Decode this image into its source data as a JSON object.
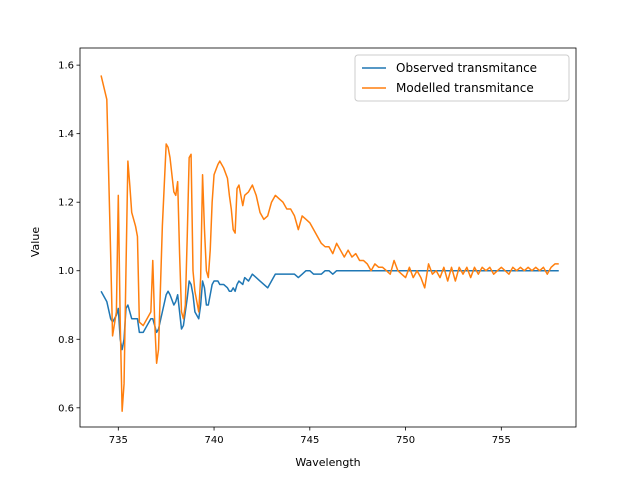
{
  "chart_data": {
    "type": "line",
    "x_label": "Wavelength",
    "y_label": "Value",
    "x": [
      734.1,
      734.4,
      734.6,
      734.7,
      734.9,
      735.0,
      735.1,
      735.2,
      735.3,
      735.4,
      735.5,
      735.6,
      735.7,
      735.9,
      736.0,
      736.1,
      736.3,
      736.5,
      736.7,
      736.8,
      736.9,
      737.0,
      737.1,
      737.3,
      737.5,
      737.6,
      737.7,
      737.9,
      738.0,
      738.1,
      738.2,
      738.3,
      738.4,
      738.5,
      738.6,
      738.7,
      738.8,
      738.9,
      739.0,
      739.2,
      739.3,
      739.4,
      739.5,
      739.6,
      739.7,
      739.8,
      739.9,
      740.0,
      740.2,
      740.3,
      740.5,
      740.7,
      740.8,
      740.9,
      741.0,
      741.1,
      741.2,
      741.3,
      741.5,
      741.6,
      741.8,
      742.0,
      742.2,
      742.4,
      742.6,
      742.8,
      743.0,
      743.2,
      743.4,
      743.6,
      743.8,
      744.0,
      744.2,
      744.4,
      744.6,
      744.8,
      745.0,
      745.2,
      745.4,
      745.6,
      745.8,
      746.0,
      746.2,
      746.4,
      746.6,
      746.8,
      747.0,
      747.2,
      747.4,
      747.6,
      747.8,
      748.0,
      748.2,
      748.4,
      748.6,
      748.8,
      749.0,
      749.2,
      749.4,
      749.6,
      749.8,
      750.0,
      750.2,
      750.4,
      750.6,
      750.8,
      751.0,
      751.2,
      751.4,
      751.6,
      751.8,
      752.0,
      752.2,
      752.4,
      752.6,
      752.8,
      753.0,
      753.2,
      753.4,
      753.6,
      753.8,
      754.0,
      754.2,
      754.4,
      754.6,
      754.8,
      755.0,
      755.2,
      755.4,
      755.6,
      755.8,
      756.0,
      756.2,
      756.4,
      756.6,
      756.8,
      757.0,
      757.2,
      757.4,
      757.6,
      757.8,
      758.0
    ],
    "series": [
      {
        "name": "Observed transmitance",
        "color": "#1f77b4",
        "values": [
          0.94,
          0.91,
          0.86,
          0.85,
          0.87,
          0.89,
          0.8,
          0.77,
          0.8,
          0.89,
          0.9,
          0.88,
          0.86,
          0.86,
          0.86,
          0.82,
          0.82,
          0.84,
          0.86,
          0.86,
          0.84,
          0.82,
          0.83,
          0.88,
          0.93,
          0.94,
          0.93,
          0.9,
          0.91,
          0.93,
          0.88,
          0.83,
          0.84,
          0.88,
          0.92,
          0.97,
          0.96,
          0.93,
          0.88,
          0.86,
          0.9,
          0.97,
          0.95,
          0.9,
          0.9,
          0.93,
          0.96,
          0.97,
          0.97,
          0.96,
          0.96,
          0.95,
          0.94,
          0.94,
          0.95,
          0.94,
          0.96,
          0.97,
          0.96,
          0.98,
          0.97,
          0.99,
          0.98,
          0.97,
          0.96,
          0.95,
          0.97,
          0.99,
          0.99,
          0.99,
          0.99,
          0.99,
          0.99,
          0.98,
          0.99,
          1.0,
          1.0,
          0.99,
          0.99,
          0.99,
          1.0,
          1.0,
          0.99,
          1.0,
          1.0,
          1.0,
          1.0,
          1.0,
          1.0,
          1.0,
          1.0,
          1.0,
          1.0,
          1.0,
          1.0,
          1.0,
          1.0,
          1.0,
          1.0,
          1.0,
          1.0,
          1.0,
          1.0,
          1.0,
          1.0,
          1.0,
          1.0,
          1.0,
          1.0,
          1.0,
          1.0,
          1.0,
          1.0,
          1.0,
          1.0,
          1.0,
          1.0,
          1.0,
          1.0,
          1.0,
          1.0,
          1.0,
          1.0,
          1.0,
          1.0,
          1.0,
          1.0,
          1.0,
          1.0,
          1.0,
          1.0,
          1.0,
          1.0,
          1.0,
          1.0,
          1.0,
          1.0,
          1.0,
          1.0,
          1.0,
          1.0,
          1.0
        ]
      },
      {
        "name": "Modelled transmitance",
        "color": "#ff7f0e",
        "values": [
          1.57,
          1.5,
          1.05,
          0.81,
          0.88,
          1.22,
          0.85,
          0.59,
          0.67,
          1.0,
          1.32,
          1.25,
          1.17,
          1.13,
          1.1,
          0.85,
          0.84,
          0.86,
          0.88,
          1.03,
          0.85,
          0.73,
          0.77,
          1.13,
          1.37,
          1.36,
          1.33,
          1.23,
          1.22,
          1.26,
          1.05,
          0.88,
          0.86,
          0.9,
          1.1,
          1.33,
          1.34,
          1.0,
          0.94,
          0.88,
          0.98,
          1.28,
          1.12,
          1.0,
          0.98,
          1.06,
          1.2,
          1.28,
          1.31,
          1.32,
          1.3,
          1.27,
          1.22,
          1.18,
          1.12,
          1.11,
          1.24,
          1.25,
          1.19,
          1.22,
          1.23,
          1.25,
          1.22,
          1.17,
          1.15,
          1.16,
          1.2,
          1.22,
          1.21,
          1.2,
          1.18,
          1.18,
          1.16,
          1.12,
          1.16,
          1.15,
          1.14,
          1.12,
          1.1,
          1.08,
          1.07,
          1.07,
          1.05,
          1.08,
          1.06,
          1.04,
          1.06,
          1.04,
          1.05,
          1.03,
          1.03,
          1.02,
          1.0,
          1.02,
          1.01,
          1.01,
          1.0,
          0.99,
          1.03,
          1.0,
          0.99,
          0.98,
          1.01,
          0.98,
          1.0,
          0.98,
          0.95,
          1.02,
          0.99,
          1.0,
          0.98,
          1.01,
          0.97,
          1.01,
          0.97,
          1.01,
          0.99,
          1.01,
          0.98,
          1.01,
          0.99,
          1.01,
          1.0,
          1.01,
          0.99,
          1.0,
          1.01,
          1.0,
          0.99,
          1.01,
          1.0,
          1.01,
          1.0,
          1.01,
          1.0,
          1.01,
          1.0,
          1.01,
          0.99,
          1.01,
          1.02,
          1.02
        ]
      }
    ],
    "xlim": [
      733.0,
      758.9
    ],
    "xticks": [
      735,
      740,
      745,
      750,
      755
    ],
    "ylim": [
      0.544,
      1.65
    ],
    "yticks": [
      0.6,
      0.8,
      {
        "value": 1.0,
        "label": "1.0"
      },
      1.2,
      1.4,
      1.6
    ],
    "grid": false,
    "legend": "upper right"
  }
}
